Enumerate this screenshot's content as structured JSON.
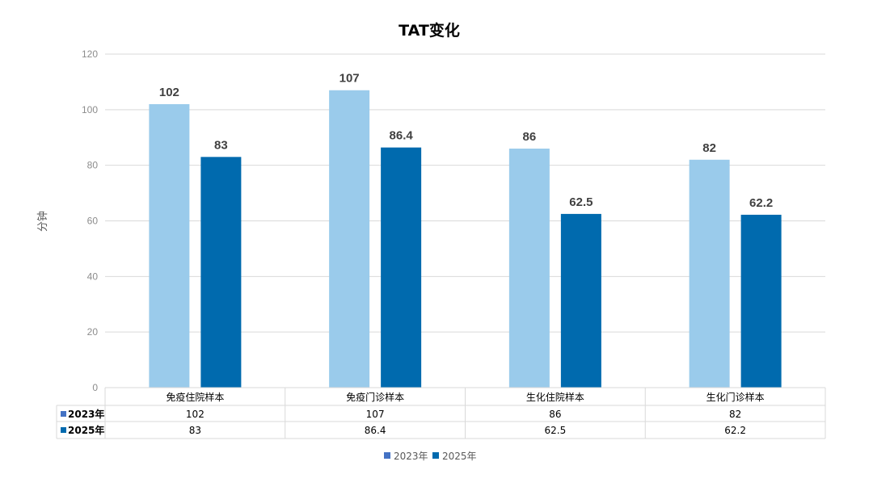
{
  "chart_data": {
    "type": "bar",
    "title": "TAT变化",
    "ylabel": "分钟",
    "xlabel": "",
    "ylim": [
      0,
      120
    ],
    "yticks": [
      0,
      20,
      40,
      60,
      80,
      100,
      120
    ],
    "grid": true,
    "legend_position": "bottom",
    "data_table": true,
    "categories": [
      "免疫住院样本",
      "免疫门诊样本",
      "生化住院样本",
      "生化门诊样本"
    ],
    "series": [
      {
        "name": "2023年",
        "values": [
          102,
          107,
          86,
          82
        ],
        "labels": [
          "102",
          "107",
          "86",
          "82"
        ],
        "color": "#9ACBEB",
        "legend_color": "#4472C4"
      },
      {
        "name": "2025年",
        "values": [
          83,
          86.4,
          62.5,
          62.2
        ],
        "labels": [
          "83",
          "86.4",
          "62.5",
          "62.2"
        ],
        "color": "#006AAE",
        "legend_color": "#006AAE"
      }
    ]
  }
}
